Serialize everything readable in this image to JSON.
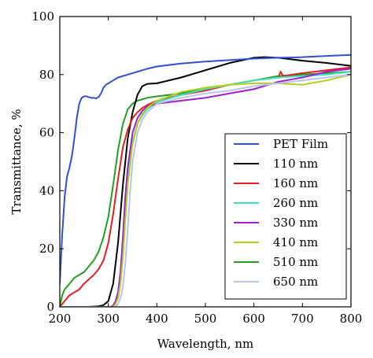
{
  "chart_data": {
    "type": "line",
    "title": "",
    "xlabel": "Wavelength, nm",
    "ylabel": "Transmittance, %",
    "xlim": [
      200,
      800
    ],
    "ylim": [
      0,
      100
    ],
    "xticks": [
      200,
      300,
      400,
      500,
      600,
      700,
      800
    ],
    "yticks": [
      0,
      20,
      40,
      60,
      80,
      100
    ],
    "grid": false,
    "legend_position": "lower-right",
    "series": [
      {
        "name": "PET Film",
        "color": "#3050d0",
        "x": [
          200,
          205,
          210,
          215,
          220,
          225,
          230,
          235,
          240,
          245,
          250,
          255,
          260,
          265,
          270,
          275,
          280,
          285,
          290,
          295,
          300,
          310,
          320,
          330,
          340,
          350,
          360,
          380,
          400,
          450,
          500,
          550,
          600,
          650,
          700,
          750,
          800
        ],
        "y": [
          8,
          25,
          38,
          45,
          48,
          52,
          58,
          65,
          70,
          72,
          72.5,
          72.5,
          72.2,
          72,
          72,
          71.8,
          72.3,
          73.5,
          75.5,
          76.5,
          77,
          78,
          79,
          79.5,
          80,
          80.5,
          81,
          82,
          82.8,
          83.8,
          84.5,
          85,
          85.5,
          85.8,
          86,
          86.4,
          86.8
        ]
      },
      {
        "name": "110 nm",
        "color": "#000000",
        "x": [
          200,
          260,
          280,
          290,
          300,
          310,
          320,
          330,
          340,
          350,
          360,
          370,
          380,
          400,
          450,
          500,
          550,
          600,
          620,
          650,
          700,
          750,
          800
        ],
        "y": [
          0,
          0,
          0.2,
          0.6,
          2,
          8,
          22,
          42,
          58,
          67,
          73,
          76,
          76.8,
          77,
          79,
          81.5,
          84,
          85.8,
          86,
          85.8,
          84.8,
          84,
          83
        ]
      },
      {
        "name": "160 nm",
        "color": "#e02020",
        "x": [
          200,
          210,
          220,
          230,
          240,
          250,
          260,
          270,
          280,
          290,
          300,
          310,
          320,
          330,
          340,
          350,
          360,
          370,
          380,
          400,
          450,
          500,
          550,
          600,
          650,
          655,
          660,
          700,
          750,
          800
        ],
        "y": [
          0,
          2,
          4,
          5,
          6,
          8,
          9.5,
          11,
          13,
          16,
          22,
          32,
          44,
          55,
          61,
          65,
          67,
          68.5,
          69.5,
          71,
          73,
          74.5,
          76.5,
          78,
          79,
          81,
          79.5,
          80.5,
          81.5,
          82.5
        ]
      },
      {
        "name": "260 nm",
        "color": "#40e0c0",
        "x": [
          200,
          310,
          315,
          320,
          325,
          330,
          335,
          340,
          350,
          360,
          370,
          380,
          400,
          450,
          500,
          550,
          600,
          650,
          700,
          750,
          800
        ],
        "y": [
          0,
          0,
          1,
          4,
          9,
          18,
          32,
          44,
          57,
          63,
          66,
          68,
          70.5,
          73,
          75,
          76.5,
          78,
          79,
          79.5,
          80,
          81
        ]
      },
      {
        "name": "330 nm",
        "color": "#a020d0",
        "x": [
          200,
          305,
          310,
          315,
          320,
          325,
          330,
          335,
          340,
          350,
          360,
          370,
          380,
          400,
          450,
          500,
          550,
          600,
          650,
          700,
          750,
          800
        ],
        "y": [
          0,
          0,
          0.5,
          2,
          5,
          12,
          24,
          38,
          48,
          60,
          65,
          67.5,
          69,
          70,
          71,
          72,
          73.5,
          75,
          77.5,
          79,
          81,
          82
        ]
      },
      {
        "name": "410 nm",
        "color": "#b0d020",
        "x": [
          200,
          310,
          315,
          320,
          325,
          330,
          335,
          340,
          350,
          360,
          370,
          380,
          400,
          450,
          500,
          550,
          600,
          650,
          700,
          750,
          800
        ],
        "y": [
          0,
          0,
          1,
          3,
          8,
          17,
          30,
          42,
          56,
          63,
          66.5,
          68.5,
          71,
          74,
          75.5,
          76.5,
          77,
          77,
          76.5,
          78,
          80
        ]
      },
      {
        "name": "510 nm",
        "color": "#20a020",
        "x": [
          200,
          205,
          210,
          220,
          230,
          240,
          250,
          260,
          270,
          280,
          290,
          300,
          310,
          320,
          330,
          340,
          350,
          360,
          370,
          380,
          400,
          450,
          500,
          550,
          600,
          650,
          700,
          750,
          800
        ],
        "y": [
          0,
          4,
          6,
          8,
          10,
          11,
          12,
          14,
          16,
          19,
          24,
          31,
          42,
          54,
          63,
          68,
          70,
          71,
          71.5,
          72,
          72.5,
          73.5,
          75,
          76.5,
          78,
          79.5,
          80,
          80.5,
          81
        ]
      },
      {
        "name": "650 nm",
        "color": "#b8c4ee",
        "x": [
          200,
          315,
          320,
          325,
          330,
          335,
          340,
          345,
          350,
          360,
          370,
          380,
          400,
          450,
          500,
          550,
          600,
          650,
          700,
          750,
          800
        ],
        "y": [
          0,
          0,
          1,
          3,
          7,
          15,
          27,
          40,
          50,
          60,
          64.5,
          67,
          70,
          72,
          73.5,
          74.5,
          76,
          77,
          78,
          79,
          80
        ]
      }
    ]
  }
}
